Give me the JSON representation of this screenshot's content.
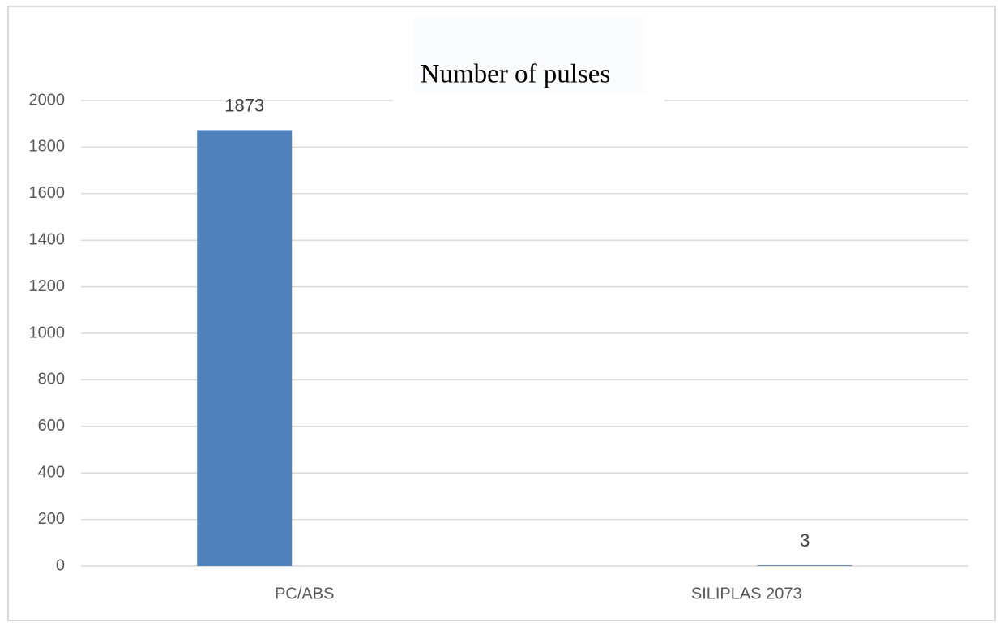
{
  "chart_data": {
    "type": "bar",
    "title": "Number of pulses",
    "categories": [
      "PC/ABS",
      "SILIPLAS 2073"
    ],
    "values": [
      1873,
      3
    ],
    "color": "#4f81bd",
    "ylim": [
      0,
      2000
    ],
    "yticks": [
      0,
      200,
      400,
      600,
      800,
      1000,
      1200,
      1400,
      1600,
      1800,
      2000
    ],
    "grid": true
  }
}
